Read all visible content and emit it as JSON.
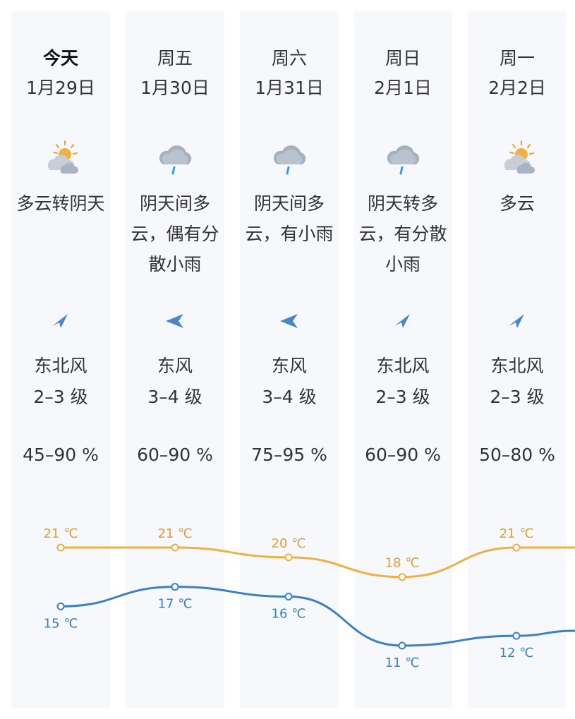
{
  "days": [
    {
      "day": "今天",
      "date": "1月29日",
      "icon": "partly-cloudy-icon",
      "desc": "多云转阴天",
      "wind_dir_icon": "wind-direction-northeast-icon",
      "wind": "东北风",
      "level": "2–3 级",
      "humidity": "45–90 %",
      "high": 21,
      "low": 15,
      "high_label": "21 ℃",
      "low_label": "15 ℃"
    },
    {
      "day": "周五",
      "date": "1月30日",
      "icon": "rain-cloud-icon",
      "desc": "阴天间多云，偶有分散小雨",
      "wind_dir_icon": "wind-direction-east-icon",
      "wind": "东风",
      "level": "3–4 级",
      "humidity": "60–90 %",
      "high": 21,
      "low": 17,
      "high_label": "21 ℃",
      "low_label": "17 ℃"
    },
    {
      "day": "周六",
      "date": "1月31日",
      "icon": "rain-cloud-icon",
      "desc": "阴天间多云，有小雨",
      "wind_dir_icon": "wind-direction-east-icon",
      "wind": "东风",
      "level": "3–4 级",
      "humidity": "75–95 %",
      "high": 20,
      "low": 16,
      "high_label": "20 ℃",
      "low_label": "16 ℃"
    },
    {
      "day": "周日",
      "date": "2月1日",
      "icon": "rain-cloud-icon",
      "desc": "阴天转多云，有分散小雨",
      "wind_dir_icon": "wind-direction-northeast-icon",
      "wind": "东北风",
      "level": "2–3 级",
      "humidity": "60–90 %",
      "high": 18,
      "low": 11,
      "high_label": "18 ℃",
      "low_label": "11 ℃"
    },
    {
      "day": "周一",
      "date": "2月2日",
      "icon": "partly-cloudy-icon",
      "desc": "多云",
      "wind_dir_icon": "wind-direction-northeast-icon",
      "wind": "东北风",
      "level": "2–3 级",
      "humidity": "50–80 %",
      "high": 21,
      "low": 12,
      "high_label": "21 ℃",
      "low_label": "12 ℃"
    }
  ],
  "colors": {
    "high_line": "#f0b040",
    "high_text": "#e0a030",
    "low_line": "#3a80c8",
    "low_text": "#3a7fc0",
    "card_bg": "#f6f8fc",
    "text": "#333333"
  },
  "chart_data": {
    "type": "line",
    "categories": [
      "今天",
      "周五",
      "周六",
      "周日",
      "周一"
    ],
    "series": [
      {
        "values": [
          21,
          21,
          20,
          18,
          21
        ]
      },
      {
        "values": [
          15,
          17,
          16,
          11,
          12
        ]
      }
    ],
    "units": "℃",
    "grid": false
  }
}
